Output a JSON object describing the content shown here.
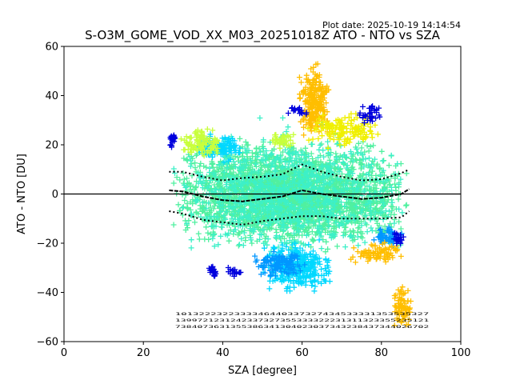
{
  "plot_date": "Plot date: 2025-10-19 14:14:54",
  "chart_data": {
    "type": "scatter",
    "title": "S-O3M_GOME_VOD_XX_M03_20251018Z ATO - NTO vs SZA",
    "xlabel": "SZA [degree]",
    "ylabel": "ATO - NTO [DU]",
    "xlim": [
      0,
      100
    ],
    "ylim": [
      -60,
      60
    ],
    "xticks": [
      0,
      20,
      40,
      60,
      80,
      100
    ],
    "yticks": [
      -60,
      -40,
      -20,
      0,
      20,
      40,
      60
    ],
    "grid": false,
    "zero_line": 0,
    "marker": "+",
    "sza_range": [
      26.5,
      88
    ],
    "colors": {
      "blue": "#0000dd",
      "azure": "#0096ff",
      "cyan": "#00d8ff",
      "aquamarine": "#3cf0c8",
      "mint": "#50f0a0",
      "yellowgreen": "#c8ff3c",
      "yellow": "#f0f000",
      "orange": "#ffbe00",
      "mean_line": "#000000",
      "std_line": "#000000"
    },
    "mean_profile": {
      "x": [
        26.5,
        30,
        35,
        40,
        45,
        50,
        55,
        60,
        65,
        70,
        75,
        80,
        85,
        87
      ],
      "y": [
        1.5,
        1,
        -1,
        -2.5,
        -3,
        -2,
        -1,
        1.5,
        0,
        -1,
        -2,
        -1.5,
        0,
        2
      ]
    },
    "upper_std_profile": {
      "x": [
        26.5,
        30,
        35,
        40,
        45,
        50,
        55,
        60,
        65,
        70,
        75,
        80,
        85,
        87
      ],
      "y": [
        9,
        9,
        7,
        5.5,
        6.5,
        7,
        8,
        12,
        9,
        7,
        5.5,
        6,
        8.5,
        10
      ]
    },
    "lower_std_profile": {
      "x": [
        26.5,
        30,
        35,
        40,
        45,
        50,
        55,
        60,
        65,
        70,
        75,
        80,
        85,
        87
      ],
      "y": [
        -7,
        -8,
        -10.5,
        -11.5,
        -12.5,
        -11,
        -10,
        -9,
        -9,
        -10,
        -10,
        -10,
        -9.5,
        -7
      ]
    },
    "clusters": [
      {
        "color": "mint",
        "x": [
          27,
          87
        ],
        "y": [
          -25,
          25
        ],
        "n": 2600
      },
      {
        "color": "aquamarine",
        "x": [
          27,
          87
        ],
        "y": [
          -30,
          32
        ],
        "n": 900
      },
      {
        "color": "cyan",
        "x": [
          50,
          68
        ],
        "y": [
          -42,
          -18
        ],
        "n": 320
      },
      {
        "color": "cyan",
        "x": [
          33,
          45
        ],
        "y": [
          12,
          26
        ],
        "n": 140
      },
      {
        "color": "azure",
        "x": [
          47,
          62
        ],
        "y": [
          -35,
          -22
        ],
        "n": 120
      },
      {
        "color": "azure",
        "x": [
          78,
          86
        ],
        "y": [
          -22,
          -12
        ],
        "n": 60
      },
      {
        "color": "orange",
        "x": [
          59,
          67
        ],
        "y": [
          20,
          55
        ],
        "n": 260
      },
      {
        "color": "orange",
        "x": [
          72,
          86
        ],
        "y": [
          -30,
          -18
        ],
        "n": 80
      },
      {
        "color": "orange",
        "x": [
          83,
          87.5
        ],
        "y": [
          -57,
          -35
        ],
        "n": 90
      },
      {
        "color": "yellow",
        "x": [
          61,
          80
        ],
        "y": [
          18,
          34
        ],
        "n": 150
      },
      {
        "color": "yellowgreen",
        "x": [
          29,
          40
        ],
        "y": [
          14,
          28
        ],
        "n": 110
      },
      {
        "color": "yellowgreen",
        "x": [
          52,
          58
        ],
        "y": [
          18,
          26
        ],
        "n": 40
      },
      {
        "color": "blue",
        "x": [
          26.5,
          28
        ],
        "y": [
          18,
          26
        ],
        "n": 25
      },
      {
        "color": "blue",
        "x": [
          36,
          39
        ],
        "y": [
          -35,
          -28
        ],
        "n": 20
      },
      {
        "color": "blue",
        "x": [
          41,
          45
        ],
        "y": [
          -34,
          -29
        ],
        "n": 18
      },
      {
        "color": "blue",
        "x": [
          74,
          81
        ],
        "y": [
          28,
          38
        ],
        "n": 35
      },
      {
        "color": "blue",
        "x": [
          82,
          86
        ],
        "y": [
          -22,
          -14
        ],
        "n": 20
      },
      {
        "color": "blue",
        "x": [
          56,
          62
        ],
        "y": [
          30,
          38
        ],
        "n": 18
      }
    ],
    "count_rows": [
      "1013222322333346440337327434533331353535327",
      "1399721231242337327355333322231311323355235121",
      "7384073631355386341304023037343238437344026702"
    ]
  }
}
